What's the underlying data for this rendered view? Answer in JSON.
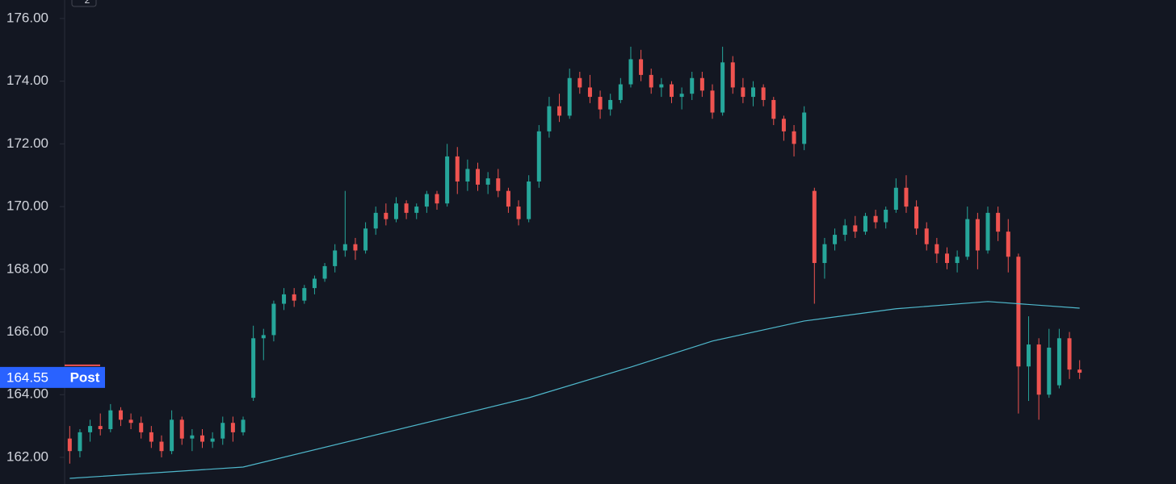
{
  "chart_data": {
    "type": "candlestick",
    "colors": {
      "up": "#26a69a",
      "down": "#ef5350",
      "background": "#131722",
      "text": "#d1d4dc"
    },
    "ylim": [
      161.15,
      176.59
    ],
    "yticks": [
      {
        "value": 162,
        "label": "162.00"
      },
      {
        "value": 164,
        "label": "164.00"
      },
      {
        "value": 166,
        "label": "166.00"
      },
      {
        "value": 168,
        "label": "168.00"
      },
      {
        "value": 170,
        "label": "170.00"
      },
      {
        "value": 172,
        "label": "172.00"
      },
      {
        "value": 174,
        "label": "174.00"
      },
      {
        "value": 176,
        "label": "176.00"
      }
    ],
    "ohlc": [
      [
        162.6,
        163.0,
        161.8,
        162.2
      ],
      [
        162.2,
        162.9,
        162.0,
        162.8
      ],
      [
        162.8,
        163.2,
        162.5,
        163.0
      ],
      [
        163.0,
        163.4,
        162.7,
        162.9
      ],
      [
        162.9,
        163.7,
        162.8,
        163.5
      ],
      [
        163.5,
        163.6,
        163.0,
        163.2
      ],
      [
        163.2,
        163.4,
        162.9,
        163.1
      ],
      [
        163.1,
        163.3,
        162.6,
        162.8
      ],
      [
        162.8,
        163.0,
        162.3,
        162.5
      ],
      [
        162.5,
        162.7,
        162.0,
        162.2
      ],
      [
        162.2,
        163.5,
        162.1,
        163.2
      ],
      [
        163.2,
        163.3,
        162.4,
        162.6
      ],
      [
        162.6,
        162.9,
        162.2,
        162.7
      ],
      [
        162.7,
        162.9,
        162.3,
        162.5
      ],
      [
        162.5,
        162.8,
        162.3,
        162.6
      ],
      [
        162.6,
        163.3,
        162.4,
        163.1
      ],
      [
        163.1,
        163.3,
        162.5,
        162.8
      ],
      [
        162.8,
        163.3,
        162.7,
        163.2
      ],
      [
        163.9,
        166.2,
        163.8,
        165.8
      ],
      [
        165.8,
        166.1,
        165.1,
        165.9
      ],
      [
        165.9,
        167.0,
        165.7,
        166.9
      ],
      [
        166.9,
        167.4,
        166.7,
        167.2
      ],
      [
        167.2,
        167.4,
        166.8,
        167.0
      ],
      [
        167.0,
        167.5,
        166.9,
        167.4
      ],
      [
        167.4,
        167.8,
        167.2,
        167.7
      ],
      [
        167.7,
        168.2,
        167.6,
        168.1
      ],
      [
        168.1,
        168.8,
        167.9,
        168.6
      ],
      [
        168.6,
        170.5,
        168.4,
        168.8
      ],
      [
        168.8,
        169.0,
        168.3,
        168.6
      ],
      [
        168.6,
        169.5,
        168.5,
        169.3
      ],
      [
        169.3,
        170.0,
        169.1,
        169.8
      ],
      [
        169.8,
        170.1,
        169.4,
        169.6
      ],
      [
        169.6,
        170.3,
        169.5,
        170.1
      ],
      [
        170.1,
        170.2,
        169.6,
        169.8
      ],
      [
        169.8,
        170.1,
        169.6,
        170.0
      ],
      [
        170.0,
        170.5,
        169.8,
        170.4
      ],
      [
        170.4,
        170.5,
        169.9,
        170.1
      ],
      [
        170.1,
        172.0,
        170.0,
        171.6
      ],
      [
        171.6,
        171.9,
        170.4,
        170.8
      ],
      [
        170.8,
        171.5,
        170.5,
        171.2
      ],
      [
        171.2,
        171.4,
        170.5,
        170.7
      ],
      [
        170.7,
        171.1,
        170.4,
        170.9
      ],
      [
        170.9,
        171.2,
        170.3,
        170.5
      ],
      [
        170.5,
        170.6,
        169.8,
        170.0
      ],
      [
        170.0,
        170.2,
        169.4,
        169.6
      ],
      [
        169.6,
        171.0,
        169.5,
        170.8
      ],
      [
        170.8,
        172.6,
        170.6,
        172.4
      ],
      [
        172.4,
        173.5,
        172.2,
        173.2
      ],
      [
        173.2,
        173.6,
        172.7,
        172.9
      ],
      [
        172.9,
        174.4,
        172.8,
        174.1
      ],
      [
        174.1,
        174.3,
        173.6,
        173.8
      ],
      [
        173.8,
        174.2,
        173.3,
        173.5
      ],
      [
        173.5,
        173.7,
        172.8,
        173.1
      ],
      [
        173.1,
        173.6,
        172.9,
        173.4
      ],
      [
        173.4,
        174.1,
        173.3,
        173.9
      ],
      [
        173.9,
        175.1,
        173.8,
        174.7
      ],
      [
        174.7,
        175.0,
        174.0,
        174.2
      ],
      [
        174.2,
        174.4,
        173.6,
        173.8
      ],
      [
        173.8,
        174.1,
        173.5,
        173.9
      ],
      [
        173.9,
        174.0,
        173.3,
        173.5
      ],
      [
        173.5,
        173.8,
        173.1,
        173.6
      ],
      [
        173.6,
        174.3,
        173.4,
        174.1
      ],
      [
        174.1,
        174.3,
        173.5,
        173.7
      ],
      [
        173.7,
        173.9,
        172.8,
        173.0
      ],
      [
        173.0,
        175.1,
        172.9,
        174.6
      ],
      [
        174.6,
        174.8,
        173.6,
        173.8
      ],
      [
        173.8,
        174.1,
        173.3,
        173.5
      ],
      [
        173.5,
        174.0,
        173.2,
        173.8
      ],
      [
        173.8,
        173.9,
        173.2,
        173.4
      ],
      [
        173.4,
        173.5,
        172.6,
        172.8
      ],
      [
        172.8,
        172.9,
        172.1,
        172.4
      ],
      [
        172.4,
        172.6,
        171.6,
        172.0
      ],
      [
        172.0,
        173.2,
        171.8,
        173.0
      ],
      [
        170.5,
        170.6,
        166.9,
        168.2
      ],
      [
        168.2,
        169.0,
        167.7,
        168.8
      ],
      [
        168.8,
        169.3,
        168.6,
        169.1
      ],
      [
        169.1,
        169.6,
        168.9,
        169.4
      ],
      [
        169.4,
        169.7,
        169.0,
        169.2
      ],
      [
        169.2,
        169.8,
        169.1,
        169.7
      ],
      [
        169.7,
        169.9,
        169.3,
        169.5
      ],
      [
        169.5,
        170.0,
        169.3,
        169.9
      ],
      [
        169.9,
        170.9,
        169.8,
        170.6
      ],
      [
        170.6,
        171.0,
        169.8,
        170.0
      ],
      [
        170.0,
        170.2,
        169.1,
        169.3
      ],
      [
        169.3,
        169.5,
        168.6,
        168.8
      ],
      [
        168.8,
        169.0,
        168.2,
        168.5
      ],
      [
        168.5,
        168.7,
        168.0,
        168.2
      ],
      [
        168.2,
        168.6,
        167.9,
        168.4
      ],
      [
        168.4,
        170.0,
        168.3,
        169.6
      ],
      [
        169.6,
        169.8,
        168.0,
        168.6
      ],
      [
        168.6,
        170.0,
        168.5,
        169.8
      ],
      [
        169.8,
        170.0,
        168.9,
        169.2
      ],
      [
        169.2,
        169.6,
        167.9,
        168.4
      ],
      [
        168.4,
        168.5,
        163.4,
        164.9
      ],
      [
        164.9,
        166.5,
        163.8,
        165.6
      ],
      [
        165.6,
        165.8,
        163.2,
        164.0
      ],
      [
        164.0,
        166.1,
        163.9,
        165.5
      ],
      [
        164.3,
        166.1,
        164.2,
        165.8
      ],
      [
        165.8,
        166.0,
        164.5,
        164.8
      ],
      [
        164.8,
        165.1,
        164.5,
        164.7
      ]
    ],
    "moving_average": {
      "color": "#4fb8cc",
      "x": [
        0,
        17,
        45,
        55,
        63,
        72,
        81,
        90,
        99
      ],
      "values": [
        161.33,
        161.69,
        163.9,
        164.88,
        165.71,
        166.35,
        166.74,
        166.97,
        166.76
      ]
    },
    "last_price": {
      "value": 164.55,
      "label": "164.55",
      "session": "Post",
      "color": "#2962ff"
    },
    "toolbar_badge": "2"
  }
}
